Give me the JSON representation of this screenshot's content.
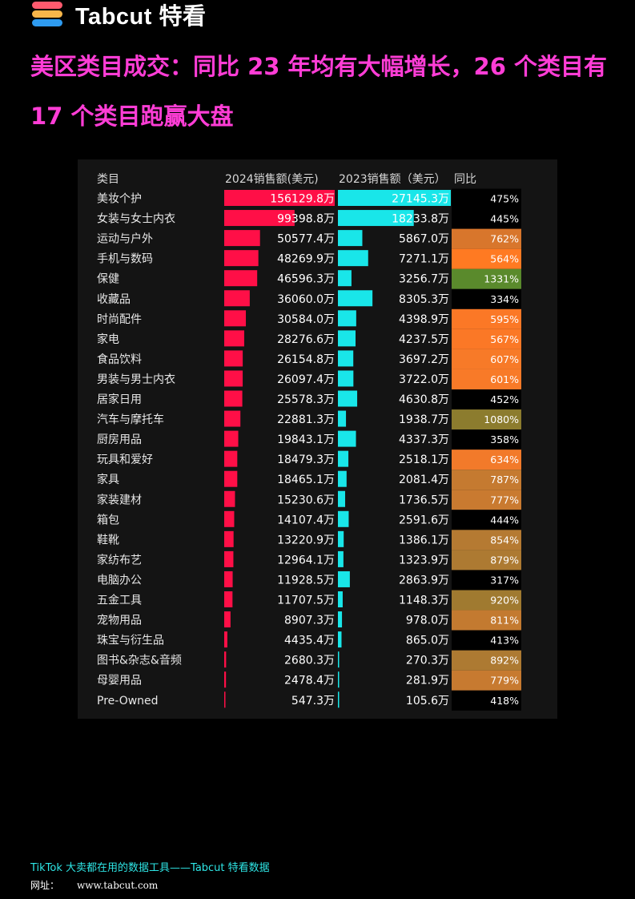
{
  "brand": {
    "name": "Tabcut 特看",
    "logo_icon": "tabcut-stack-logo-icon"
  },
  "headline": "美区类目成交：同比 23 年均有大幅增长，26 个类目有 17 个类目跑赢大盘",
  "chart_data": {
    "type": "table",
    "headers": {
      "category": "类目",
      "y2024": "2024销售额(美元)",
      "y2023": "2023销售额（美元）",
      "yoy": "同比"
    },
    "unit": "万",
    "categories": [
      "美妆个护",
      "女装与女士内衣",
      "运动与户外",
      "手机与数码",
      "保健",
      "收藏品",
      "时尚配件",
      "家电",
      "食品饮料",
      "男装与男士内衣",
      "居家日用",
      "汽车与摩托车",
      "厨房用品",
      "玩具和爱好",
      "家具",
      "家装建材",
      "箱包",
      "鞋靴",
      "家纺布艺",
      "电脑办公",
      "五金工具",
      "宠物用品",
      "珠宝与衍生品",
      "图书&杂志&音频",
      "母婴用品",
      "Pre-Owned"
    ],
    "series": [
      {
        "name": "2024销售额(美元)",
        "color": "#ff0f47",
        "labels": [
          "156129.8万",
          "99398.8万",
          "50577.4万",
          "48269.9万",
          "46596.3万",
          "36060.0万",
          "30584.0万",
          "28276.6万",
          "26154.8万",
          "26097.4万",
          "25578.3万",
          "22881.3万",
          "19843.1万",
          "18479.3万",
          "18465.1万",
          "15230.6万",
          "14107.4万",
          "13220.9万",
          "12964.1万",
          "11928.5万",
          "11707.5万",
          "8907.3万",
          "4435.4万",
          "2680.3万",
          "2478.4万",
          "547.3万"
        ],
        "values": [
          156129.8,
          99398.8,
          50577.4,
          48269.9,
          46596.3,
          36060.0,
          30584.0,
          28276.6,
          26154.8,
          26097.4,
          25578.3,
          22881.3,
          19843.1,
          18479.3,
          18465.1,
          15230.6,
          14107.4,
          13220.9,
          12964.1,
          11928.5,
          11707.5,
          8907.3,
          4435.4,
          2680.3,
          2478.4,
          547.3
        ]
      },
      {
        "name": "2023销售额（美元）",
        "color": "#19e6e9",
        "labels": [
          "27145.3万",
          "18233.8万",
          "5867.0万",
          "7271.1万",
          "3256.7万",
          "8305.3万",
          "4398.9万",
          "4237.5万",
          "3697.2万",
          "3722.0万",
          "4630.8万",
          "1938.7万",
          "4337.3万",
          "2518.1万",
          "2081.4万",
          "1736.5万",
          "2591.6万",
          "1386.1万",
          "1323.9万",
          "2863.9万",
          "1148.3万",
          "978.0万",
          "865.0万",
          "270.3万",
          "281.9万",
          "105.6万"
        ],
        "values": [
          27145.3,
          18233.8,
          5867.0,
          7271.1,
          3256.7,
          8305.3,
          4398.9,
          4237.5,
          3697.2,
          3722.0,
          4630.8,
          1938.7,
          4337.3,
          2518.1,
          2081.4,
          1736.5,
          2591.6,
          1386.1,
          1323.9,
          2863.9,
          1148.3,
          978.0,
          865.0,
          270.3,
          281.9,
          105.6
        ]
      },
      {
        "name": "同比",
        "labels": [
          "475%",
          "445%",
          "762%",
          "564%",
          "1331%",
          "334%",
          "595%",
          "567%",
          "607%",
          "601%",
          "452%",
          "1080%",
          "358%",
          "634%",
          "787%",
          "777%",
          "444%",
          "854%",
          "879%",
          "317%",
          "920%",
          "811%",
          "413%",
          "892%",
          "779%",
          "418%"
        ],
        "values": [
          475,
          445,
          762,
          564,
          1331,
          334,
          595,
          567,
          607,
          601,
          452,
          1080,
          358,
          634,
          787,
          777,
          444,
          854,
          879,
          317,
          920,
          811,
          413,
          892,
          779,
          418
        ],
        "cell_colors": [
          "#000000",
          "#000000",
          "#d8762c",
          "#ff7a22",
          "#5a8a2c",
          "#000000",
          "#fb7826",
          "#fb7826",
          "#f77a28",
          "#f87a28",
          "#000000",
          "#8c7c2e",
          "#000000",
          "#f27a2a",
          "#c57a30",
          "#c97a30",
          "#000000",
          "#b57a32",
          "#ad7a32",
          "#000000",
          "#a07a30",
          "#c37a30",
          "#000000",
          "#ad7a32",
          "#c77a30",
          "#000000"
        ]
      }
    ]
  },
  "footer": {
    "tagline": "TikTok 大卖都在用的数据工具——Tabcut 特看数据",
    "url_label": "网址：",
    "url": "www.tabcut.com"
  }
}
